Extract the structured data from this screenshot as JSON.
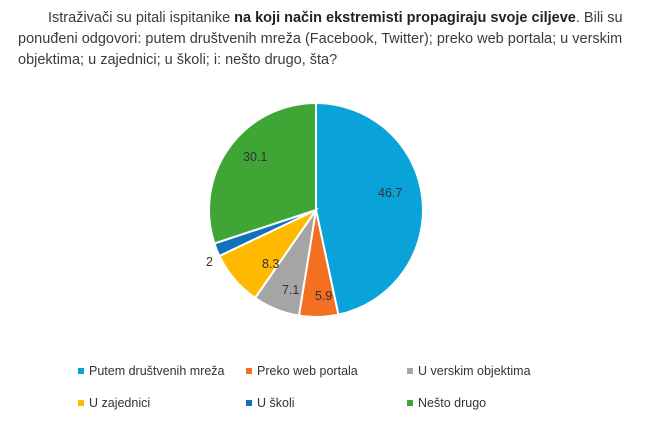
{
  "intro": {
    "part1": "Istraživači su pitali ispitanike ",
    "bold": "na koji način ekstremisti propagiraju svoje ciljeve",
    "part2": ". Bili su ponuđeni odgovori: putem društvenih mreža (Facebook, Twitter); preko web portala; u verskim objektima; u zajednici; u školi; i: nešto drugo, šta?"
  },
  "chart_data": {
    "type": "pie",
    "slices": [
      {
        "label": "Putem društvenih mreža",
        "value": 46.7,
        "display": "46.7",
        "color": "#0AA3D9"
      },
      {
        "label": "Preko web portala",
        "value": 5.9,
        "display": "5.9",
        "color": "#F36F21"
      },
      {
        "label": "U verskim objektima",
        "value": 7.1,
        "display": "7.1",
        "color": "#A5A5A5"
      },
      {
        "label": "U zajednici",
        "value": 8.3,
        "display": "8.3",
        "color": "#FFB900"
      },
      {
        "label": "U školi",
        "value": 2,
        "display": "2",
        "color": "#1171BA"
      },
      {
        "label": "Nešto drugo",
        "value": 30.1,
        "display": "30.1",
        "color": "#3FA535"
      }
    ],
    "legend_position": "bottom"
  }
}
